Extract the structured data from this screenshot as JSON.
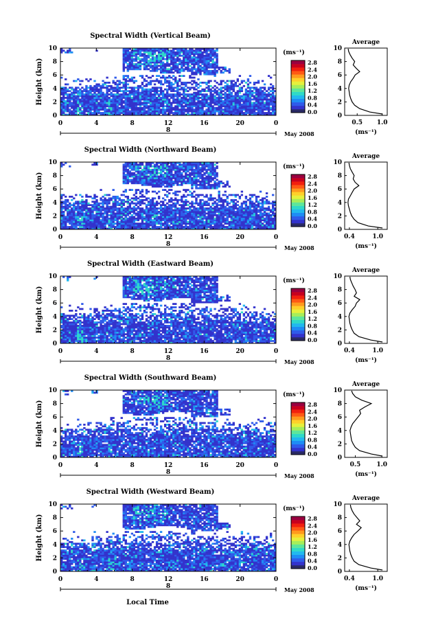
{
  "chart_data": {
    "type": "heatmap",
    "colorbar": {
      "unit": "(ms⁻¹)",
      "ticks": [
        "0.0",
        "0.4",
        "0.8",
        "1.2",
        "1.6",
        "2.0",
        "2.4",
        "2.8"
      ],
      "colors": [
        "#2a2a66",
        "#3333cc",
        "#2f5bea",
        "#1f8cf5",
        "#22b9ee",
        "#2fd9c8",
        "#5ee69a",
        "#a6ee5a",
        "#e6f03c",
        "#ffd02a",
        "#ff9a1e",
        "#ff5a14",
        "#f2200e",
        "#c8001e",
        "#9a0040"
      ]
    },
    "x_axis": {
      "label": "Local Time",
      "ticks": [
        "0",
        "4",
        "8",
        "12",
        "16",
        "20",
        "0"
      ],
      "range": [
        0,
        24
      ],
      "date_marker": "8",
      "date_label": "May 2008"
    },
    "y_axis": {
      "label": "Height (km)",
      "ticks": [
        "0",
        "2",
        "4",
        "6",
        "8",
        "10"
      ],
      "range": [
        0,
        10
      ]
    },
    "average_title": "Average",
    "average_unit": "(ms⁻¹)",
    "panels": [
      {
        "title": "Spectral Width (Vertical Beam)",
        "avg_ticks": [
          "0.5",
          "1.0"
        ],
        "avg_range": [
          0.25,
          1.1
        ],
        "average_profile": {
          "height": [
            0.2,
            0.5,
            1.0,
            1.5,
            2.0,
            2.5,
            3.0,
            3.5,
            4.0,
            4.5,
            5.0,
            5.5,
            6.0,
            6.5,
            7.0,
            7.5,
            8.0,
            8.5,
            9.0,
            9.5,
            9.9
          ],
          "value": [
            1.0,
            0.75,
            0.55,
            0.45,
            0.4,
            0.37,
            0.35,
            0.34,
            0.33,
            0.34,
            0.37,
            0.42,
            0.46,
            0.55,
            0.48,
            0.42,
            0.45,
            0.4,
            0.36,
            0.33,
            0.32
          ]
        }
      },
      {
        "title": "Spectral Width (Northward Beam)",
        "avg_ticks": [
          "0.4",
          "1.0"
        ],
        "avg_range": [
          0.3,
          1.2
        ],
        "average_profile": {
          "height": [
            0.2,
            0.5,
            1.0,
            1.5,
            2.0,
            2.5,
            3.0,
            3.5,
            4.0,
            4.5,
            5.0,
            5.5,
            6.0,
            6.5,
            7.0,
            7.5,
            8.0,
            8.5,
            9.0,
            9.5,
            9.9
          ],
          "value": [
            1.1,
            0.8,
            0.58,
            0.5,
            0.45,
            0.42,
            0.4,
            0.38,
            0.37,
            0.38,
            0.42,
            0.46,
            0.5,
            0.6,
            0.52,
            0.48,
            0.5,
            0.46,
            0.42,
            0.4,
            0.39
          ]
        }
      },
      {
        "title": "Spectral Width (Eastward Beam)",
        "avg_ticks": [
          "0.4",
          "1.0"
        ],
        "avg_range": [
          0.3,
          1.2
        ],
        "average_profile": {
          "height": [
            0.2,
            0.5,
            1.0,
            1.5,
            2.0,
            2.5,
            3.0,
            3.5,
            4.0,
            4.5,
            5.0,
            5.5,
            6.0,
            6.5,
            7.0,
            7.5,
            8.0,
            8.5,
            9.0,
            9.5,
            9.9
          ],
          "value": [
            1.1,
            0.85,
            0.6,
            0.5,
            0.46,
            0.43,
            0.41,
            0.4,
            0.39,
            0.41,
            0.46,
            0.52,
            0.55,
            0.62,
            0.5,
            0.55,
            0.52,
            0.48,
            0.45,
            0.42,
            0.41
          ]
        }
      },
      {
        "title": "Spectral Width (Southward Beam)",
        "avg_ticks": [
          "0.5",
          "1.0"
        ],
        "avg_range": [
          0.3,
          1.1
        ],
        "average_profile": {
          "height": [
            0.2,
            0.5,
            1.0,
            1.5,
            2.0,
            2.5,
            3.0,
            3.5,
            4.0,
            4.5,
            5.0,
            5.5,
            6.0,
            6.5,
            7.0,
            7.5,
            8.0,
            8.5,
            9.0,
            9.5,
            9.9
          ],
          "value": [
            1.0,
            0.8,
            0.58,
            0.5,
            0.46,
            0.43,
            0.42,
            0.41,
            0.4,
            0.42,
            0.45,
            0.5,
            0.55,
            0.6,
            0.58,
            0.68,
            0.8,
            0.62,
            0.5,
            0.45,
            0.43
          ]
        }
      },
      {
        "title": "Spectral Width (Westward Beam)",
        "avg_ticks": [
          "0.4",
          "1.0"
        ],
        "avg_range": [
          0.3,
          1.2
        ],
        "average_profile": {
          "height": [
            0.2,
            0.5,
            1.0,
            1.5,
            2.0,
            2.5,
            3.0,
            3.5,
            4.0,
            4.5,
            5.0,
            5.5,
            6.0,
            6.5,
            7.0,
            7.5,
            8.0,
            8.5,
            9.0,
            9.5,
            9.9
          ],
          "value": [
            1.1,
            0.85,
            0.6,
            0.5,
            0.46,
            0.43,
            0.41,
            0.4,
            0.39,
            0.41,
            0.45,
            0.5,
            0.58,
            0.65,
            0.55,
            0.62,
            0.56,
            0.5,
            0.46,
            0.43,
            0.42
          ]
        }
      }
    ]
  }
}
